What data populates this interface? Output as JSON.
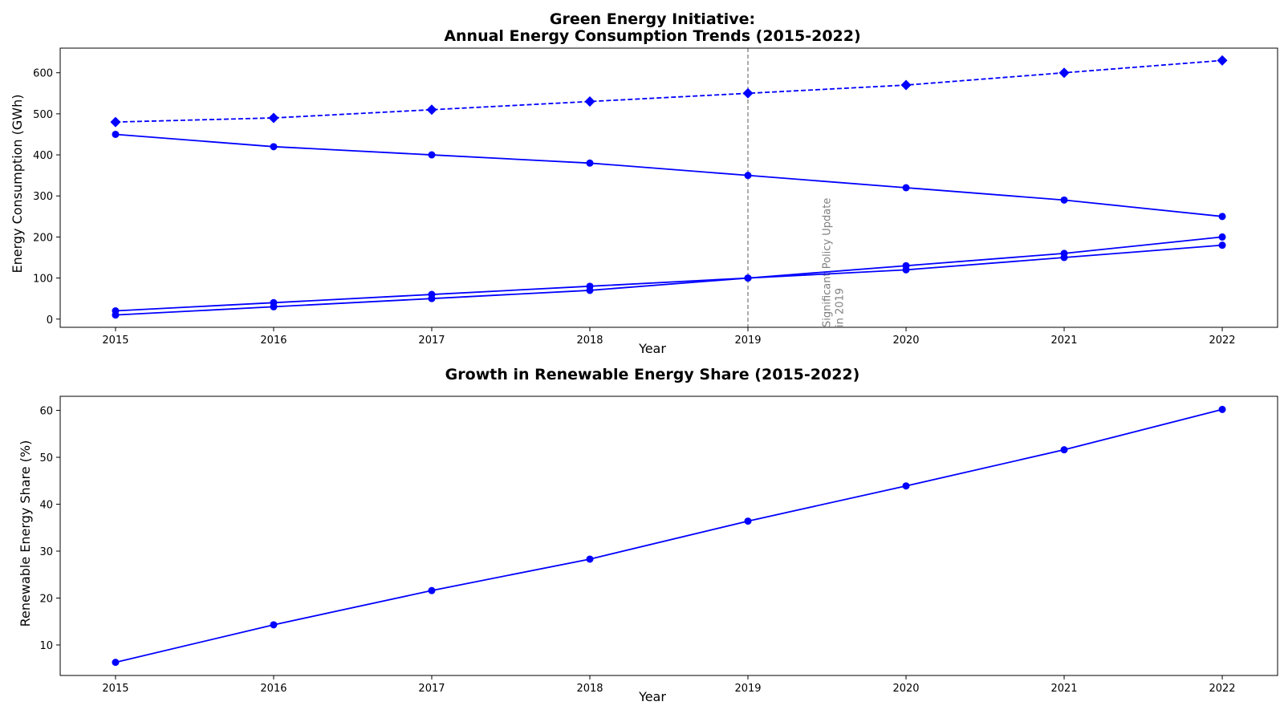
{
  "chart_data": [
    {
      "type": "line",
      "title_line1": "Green Energy Initiative:",
      "title_line2": "Annual Energy Consumption Trends (2015-2022)",
      "xlabel": "Year",
      "ylabel": "Energy Consumption (GWh)",
      "x": [
        2015,
        2016,
        2017,
        2018,
        2019,
        2020,
        2021,
        2022
      ],
      "xlim": [
        2014.65,
        2022.35
      ],
      "ylim": [
        -20,
        660
      ],
      "yticks": [
        0,
        100,
        200,
        300,
        400,
        500,
        600
      ],
      "grid": false,
      "color": "#0000ff",
      "series": [
        {
          "values": [
            480,
            490,
            510,
            530,
            550,
            570,
            600,
            630
          ],
          "marker": "diamond",
          "linestyle": "dashed"
        },
        {
          "values": [
            450,
            420,
            400,
            380,
            350,
            320,
            290,
            250
          ],
          "marker": "circle",
          "linestyle": "solid"
        },
        {
          "values": [
            20,
            40,
            60,
            80,
            100,
            130,
            160,
            200
          ],
          "marker": "circle",
          "linestyle": "solid"
        },
        {
          "values": [
            10,
            30,
            50,
            70,
            100,
            120,
            150,
            180
          ],
          "marker": "circle",
          "linestyle": "solid"
        }
      ],
      "vline": {
        "x": 2019,
        "color": "#808080",
        "linestyle": "dashed"
      },
      "annotation": {
        "line1": "Significant Policy Update",
        "line2": "in 2019",
        "x": 2019.5,
        "y": -20,
        "color": "#808080"
      }
    },
    {
      "type": "line",
      "title": "Growth in Renewable Energy Share (2015-2022)",
      "xlabel": "Year",
      "ylabel": "Renewable Energy Share (%)",
      "x": [
        2015,
        2016,
        2017,
        2018,
        2019,
        2020,
        2021,
        2022
      ],
      "xlim": [
        2014.65,
        2022.35
      ],
      "ylim": [
        3.5,
        63
      ],
      "yticks": [
        10,
        20,
        30,
        40,
        50,
        60
      ],
      "grid": false,
      "color": "#0000ff",
      "series": [
        {
          "values": [
            6.3,
            14.3,
            21.6,
            28.3,
            36.4,
            43.9,
            51.6,
            60.2
          ],
          "marker": "circle",
          "linestyle": "solid"
        }
      ]
    }
  ]
}
